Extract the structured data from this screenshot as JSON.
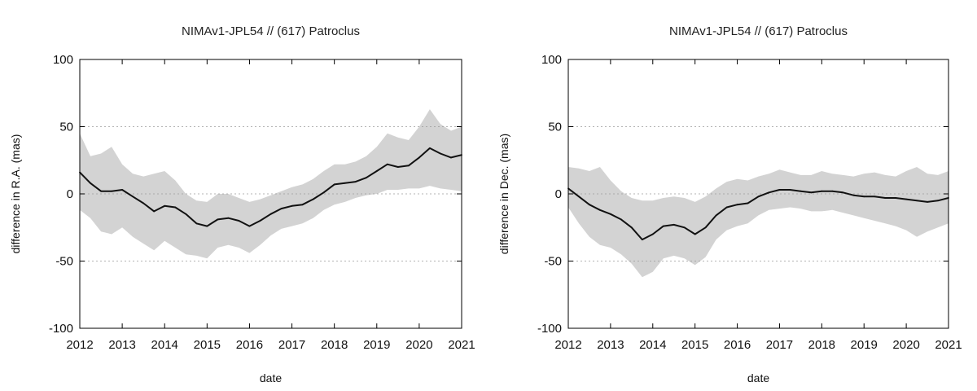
{
  "chart_data": [
    {
      "type": "line",
      "title": "NIMAv1-JPL54 // (617) Patroclus",
      "xlabel": "date",
      "ylabel": "difference in R.A. (mas)",
      "xlim": [
        2012,
        2021
      ],
      "ylim": [
        -100,
        100
      ],
      "xticks": [
        "2012",
        "2013",
        "2014",
        "2015",
        "2016",
        "2017",
        "2018",
        "2019",
        "2020",
        "2021"
      ],
      "yticks": [
        "100",
        "50",
        "0",
        "-50",
        "-100"
      ],
      "grid": "horizontal-dotted",
      "colors": {
        "line": "#111111",
        "band": "#d3d3d3"
      },
      "series": [
        {
          "x": [
            2012.0,
            2012.25,
            2012.5,
            2012.75,
            2013.0,
            2013.25,
            2013.5,
            2013.75,
            2014.0,
            2014.25,
            2014.5,
            2014.75,
            2015.0,
            2015.25,
            2015.5,
            2015.75,
            2016.0,
            2016.25,
            2016.5,
            2016.75,
            2017.0,
            2017.25,
            2017.5,
            2017.75,
            2018.0,
            2018.25,
            2018.5,
            2018.75,
            2019.0,
            2019.25,
            2019.5,
            2019.75,
            2020.0,
            2020.25,
            2020.5,
            2020.75,
            2021.0
          ],
          "values": [
            16,
            8,
            2,
            2,
            3,
            -2,
            -7,
            -13,
            -9,
            -10,
            -15,
            -22,
            -24,
            -19,
            -18,
            -20,
            -24,
            -20,
            -15,
            -11,
            -9,
            -8,
            -4,
            1,
            7,
            8,
            9,
            12,
            17,
            22,
            20,
            21,
            27,
            34,
            30,
            27,
            29
          ],
          "upper": [
            45,
            28,
            30,
            35,
            22,
            15,
            13,
            15,
            17,
            10,
            0,
            -5,
            -6,
            0,
            0,
            -3,
            -6,
            -4,
            -1,
            2,
            5,
            7,
            11,
            17,
            22,
            22,
            24,
            28,
            35,
            45,
            42,
            40,
            50,
            63,
            52,
            47,
            50
          ],
          "lower": [
            -12,
            -18,
            -28,
            -30,
            -25,
            -32,
            -37,
            -42,
            -35,
            -40,
            -45,
            -46,
            -48,
            -40,
            -38,
            -40,
            -44,
            -38,
            -31,
            -26,
            -24,
            -22,
            -18,
            -12,
            -8,
            -6,
            -3,
            -1,
            0,
            3,
            3,
            4,
            4,
            6,
            4,
            3,
            2
          ]
        }
      ]
    },
    {
      "type": "line",
      "title": "NIMAv1-JPL54 // (617) Patroclus",
      "xlabel": "date",
      "ylabel": "difference in Dec. (mas)",
      "xlim": [
        2012,
        2021
      ],
      "ylim": [
        -100,
        100
      ],
      "xticks": [
        "2012",
        "2013",
        "2014",
        "2015",
        "2016",
        "2017",
        "2018",
        "2019",
        "2020",
        "2021"
      ],
      "yticks": [
        "100",
        "50",
        "0",
        "-50",
        "-100"
      ],
      "grid": "horizontal-dotted",
      "colors": {
        "line": "#111111",
        "band": "#d3d3d3"
      },
      "series": [
        {
          "x": [
            2012.0,
            2012.25,
            2012.5,
            2012.75,
            2013.0,
            2013.25,
            2013.5,
            2013.75,
            2014.0,
            2014.25,
            2014.5,
            2014.75,
            2015.0,
            2015.25,
            2015.5,
            2015.75,
            2016.0,
            2016.25,
            2016.5,
            2016.75,
            2017.0,
            2017.25,
            2017.5,
            2017.75,
            2018.0,
            2018.25,
            2018.5,
            2018.75,
            2019.0,
            2019.25,
            2019.5,
            2019.75,
            2020.0,
            2020.25,
            2020.5,
            2020.75,
            2021.0
          ],
          "values": [
            4,
            -2,
            -8,
            -12,
            -15,
            -19,
            -25,
            -34,
            -30,
            -24,
            -23,
            -25,
            -30,
            -25,
            -16,
            -10,
            -8,
            -7,
            -2,
            1,
            3,
            3,
            2,
            1,
            2,
            2,
            1,
            -1,
            -2,
            -2,
            -3,
            -3,
            -4,
            -5,
            -6,
            -5,
            -3
          ],
          "upper": [
            20,
            19,
            17,
            20,
            10,
            2,
            -3,
            -5,
            -5,
            -3,
            -2,
            -3,
            -6,
            -2,
            4,
            9,
            11,
            10,
            13,
            15,
            18,
            16,
            14,
            14,
            17,
            15,
            14,
            13,
            15,
            16,
            14,
            13,
            17,
            20,
            15,
            14,
            17
          ],
          "lower": [
            -10,
            -22,
            -32,
            -38,
            -40,
            -45,
            -52,
            -62,
            -58,
            -48,
            -46,
            -48,
            -53,
            -47,
            -34,
            -27,
            -24,
            -22,
            -16,
            -12,
            -11,
            -10,
            -11,
            -13,
            -13,
            -12,
            -14,
            -16,
            -18,
            -20,
            -22,
            -24,
            -27,
            -32,
            -28,
            -25,
            -22
          ]
        }
      ]
    }
  ]
}
